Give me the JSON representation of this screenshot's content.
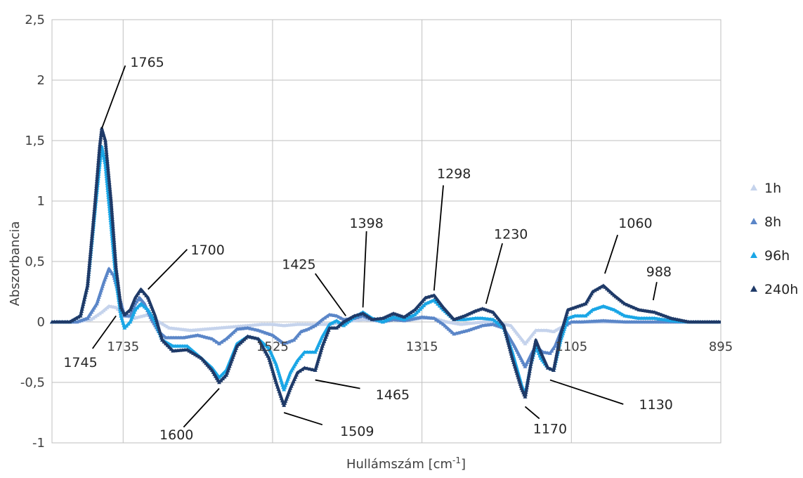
{
  "chart_data": {
    "type": "line",
    "title": "",
    "xlabel": "Hullámszám [cm",
    "xlabel_sup": "-1",
    "xlabel_suffix": "]",
    "ylabel": "Abszorbancia",
    "xlim": [
      1835,
      895
    ],
    "x_reversed": true,
    "ylim": [
      -1,
      2.5
    ],
    "grid": true,
    "legend_position": "right",
    "y_ticks": [
      {
        "value": 2.5,
        "label": "2,5"
      },
      {
        "value": 2,
        "label": "2"
      },
      {
        "value": 1.5,
        "label": "1,5"
      },
      {
        "value": 1,
        "label": "1"
      },
      {
        "value": 0.5,
        "label": "0,5"
      },
      {
        "value": 0,
        "label": "0"
      },
      {
        "value": -0.5,
        "label": "-0,5"
      },
      {
        "value": -1,
        "label": "-1"
      }
    ],
    "x_ticks": [
      {
        "value": 1735,
        "label": "1735"
      },
      {
        "value": 1525,
        "label": "1525"
      },
      {
        "value": 1315,
        "label": "1315"
      },
      {
        "value": 1105,
        "label": "1105"
      },
      {
        "value": 895,
        "label": "895"
      }
    ],
    "series": [
      {
        "name": "1h",
        "color": "#c5d3ec",
        "points": [
          [
            1835,
            0
          ],
          [
            1800,
            0
          ],
          [
            1780,
            0.02
          ],
          [
            1765,
            0.08
          ],
          [
            1755,
            0.13
          ],
          [
            1745,
            0.12
          ],
          [
            1735,
            0.06
          ],
          [
            1720,
            0.03
          ],
          [
            1700,
            0.06
          ],
          [
            1690,
            0.02
          ],
          [
            1670,
            -0.05
          ],
          [
            1640,
            -0.07
          ],
          [
            1600,
            -0.05
          ],
          [
            1580,
            -0.04
          ],
          [
            1560,
            -0.03
          ],
          [
            1540,
            -0.02
          ],
          [
            1525,
            -0.02
          ],
          [
            1509,
            -0.03
          ],
          [
            1490,
            -0.02
          ],
          [
            1465,
            -0.02
          ],
          [
            1445,
            -0.02
          ],
          [
            1425,
            0
          ],
          [
            1398,
            0.02
          ],
          [
            1380,
            0.01
          ],
          [
            1360,
            0.02
          ],
          [
            1340,
            0.01
          ],
          [
            1315,
            0.03
          ],
          [
            1298,
            0.03
          ],
          [
            1280,
            0
          ],
          [
            1260,
            -0.02
          ],
          [
            1230,
            0
          ],
          [
            1215,
            0
          ],
          [
            1190,
            -0.03
          ],
          [
            1170,
            -0.18
          ],
          [
            1155,
            -0.07
          ],
          [
            1140,
            -0.07
          ],
          [
            1130,
            -0.08
          ],
          [
            1115,
            -0.03
          ],
          [
            1105,
            0
          ],
          [
            1080,
            0
          ],
          [
            1060,
            0
          ],
          [
            1040,
            0
          ],
          [
            1020,
            0
          ],
          [
            988,
            0
          ],
          [
            960,
            0
          ],
          [
            930,
            0
          ],
          [
            895,
            0
          ]
        ]
      },
      {
        "name": "8h",
        "color": "#5b86c8",
        "points": [
          [
            1835,
            0
          ],
          [
            1800,
            0
          ],
          [
            1785,
            0.03
          ],
          [
            1772,
            0.15
          ],
          [
            1762,
            0.33
          ],
          [
            1755,
            0.44
          ],
          [
            1748,
            0.38
          ],
          [
            1740,
            0.2
          ],
          [
            1733,
            0.05
          ],
          [
            1725,
            0.05
          ],
          [
            1718,
            0.15
          ],
          [
            1712,
            0.2
          ],
          [
            1705,
            0.15
          ],
          [
            1695,
            0.02
          ],
          [
            1685,
            -0.08
          ],
          [
            1675,
            -0.13
          ],
          [
            1650,
            -0.13
          ],
          [
            1630,
            -0.11
          ],
          [
            1610,
            -0.14
          ],
          [
            1600,
            -0.18
          ],
          [
            1590,
            -0.14
          ],
          [
            1575,
            -0.06
          ],
          [
            1560,
            -0.05
          ],
          [
            1545,
            -0.07
          ],
          [
            1525,
            -0.11
          ],
          [
            1509,
            -0.18
          ],
          [
            1495,
            -0.15
          ],
          [
            1485,
            -0.08
          ],
          [
            1475,
            -0.06
          ],
          [
            1465,
            -0.03
          ],
          [
            1455,
            0.02
          ],
          [
            1445,
            0.06
          ],
          [
            1435,
            0.05
          ],
          [
            1425,
            0.02
          ],
          [
            1410,
            0.03
          ],
          [
            1398,
            0.05
          ],
          [
            1385,
            0.02
          ],
          [
            1370,
            0
          ],
          [
            1355,
            0.02
          ],
          [
            1340,
            0.01
          ],
          [
            1315,
            0.04
          ],
          [
            1298,
            0.03
          ],
          [
            1285,
            -0.02
          ],
          [
            1270,
            -0.1
          ],
          [
            1250,
            -0.07
          ],
          [
            1230,
            -0.03
          ],
          [
            1215,
            -0.02
          ],
          [
            1200,
            -0.05
          ],
          [
            1185,
            -0.2
          ],
          [
            1170,
            -0.37
          ],
          [
            1160,
            -0.25
          ],
          [
            1155,
            -0.2
          ],
          [
            1145,
            -0.25
          ],
          [
            1135,
            -0.26
          ],
          [
            1128,
            -0.2
          ],
          [
            1118,
            -0.05
          ],
          [
            1105,
            0
          ],
          [
            1090,
            0
          ],
          [
            1060,
            0.01
          ],
          [
            1030,
            0
          ],
          [
            988,
            0
          ],
          [
            960,
            0
          ],
          [
            930,
            0
          ],
          [
            895,
            0
          ]
        ]
      },
      {
        "name": "96h",
        "color": "#1aa6e6",
        "points": [
          [
            1835,
            0
          ],
          [
            1810,
            0
          ],
          [
            1795,
            0.05
          ],
          [
            1785,
            0.3
          ],
          [
            1775,
            0.9
          ],
          [
            1768,
            1.3
          ],
          [
            1765,
            1.45
          ],
          [
            1760,
            1.3
          ],
          [
            1752,
            0.8
          ],
          [
            1745,
            0.35
          ],
          [
            1738,
            0.05
          ],
          [
            1733,
            -0.05
          ],
          [
            1725,
            0
          ],
          [
            1718,
            0.1
          ],
          [
            1710,
            0.15
          ],
          [
            1700,
            0.1
          ],
          [
            1690,
            0
          ],
          [
            1680,
            -0.15
          ],
          [
            1665,
            -0.2
          ],
          [
            1645,
            -0.2
          ],
          [
            1625,
            -0.3
          ],
          [
            1610,
            -0.38
          ],
          [
            1600,
            -0.46
          ],
          [
            1590,
            -0.4
          ],
          [
            1575,
            -0.18
          ],
          [
            1560,
            -0.12
          ],
          [
            1545,
            -0.14
          ],
          [
            1530,
            -0.22
          ],
          [
            1520,
            -0.35
          ],
          [
            1509,
            -0.56
          ],
          [
            1500,
            -0.42
          ],
          [
            1490,
            -0.32
          ],
          [
            1480,
            -0.25
          ],
          [
            1465,
            -0.25
          ],
          [
            1455,
            -0.12
          ],
          [
            1445,
            -0.02
          ],
          [
            1435,
            0.01
          ],
          [
            1425,
            -0.03
          ],
          [
            1410,
            0.04
          ],
          [
            1398,
            0.08
          ],
          [
            1385,
            0.03
          ],
          [
            1370,
            0
          ],
          [
            1355,
            0.04
          ],
          [
            1340,
            0.02
          ],
          [
            1325,
            0.06
          ],
          [
            1310,
            0.15
          ],
          [
            1298,
            0.18
          ],
          [
            1285,
            0.1
          ],
          [
            1270,
            0.02
          ],
          [
            1255,
            0.02
          ],
          [
            1240,
            0.03
          ],
          [
            1230,
            0.03
          ],
          [
            1215,
            0.02
          ],
          [
            1200,
            -0.05
          ],
          [
            1188,
            -0.25
          ],
          [
            1175,
            -0.52
          ],
          [
            1170,
            -0.6
          ],
          [
            1162,
            -0.35
          ],
          [
            1155,
            -0.2
          ],
          [
            1148,
            -0.3
          ],
          [
            1138,
            -0.38
          ],
          [
            1130,
            -0.4
          ],
          [
            1120,
            -0.15
          ],
          [
            1110,
            0.03
          ],
          [
            1100,
            0.05
          ],
          [
            1085,
            0.05
          ],
          [
            1075,
            0.1
          ],
          [
            1060,
            0.13
          ],
          [
            1045,
            0.1
          ],
          [
            1030,
            0.05
          ],
          [
            1010,
            0.03
          ],
          [
            988,
            0.03
          ],
          [
            965,
            0.01
          ],
          [
            940,
            0
          ],
          [
            895,
            0
          ]
        ]
      },
      {
        "name": "240h",
        "color": "#1f3a68",
        "points": [
          [
            1835,
            0
          ],
          [
            1810,
            0
          ],
          [
            1795,
            0.05
          ],
          [
            1785,
            0.3
          ],
          [
            1775,
            0.95
          ],
          [
            1768,
            1.45
          ],
          [
            1765,
            1.6
          ],
          [
            1760,
            1.5
          ],
          [
            1752,
            1.0
          ],
          [
            1745,
            0.45
          ],
          [
            1738,
            0.12
          ],
          [
            1733,
            0.06
          ],
          [
            1725,
            0.1
          ],
          [
            1718,
            0.2
          ],
          [
            1710,
            0.27
          ],
          [
            1700,
            0.2
          ],
          [
            1690,
            0.05
          ],
          [
            1680,
            -0.15
          ],
          [
            1665,
            -0.24
          ],
          [
            1645,
            -0.23
          ],
          [
            1625,
            -0.3
          ],
          [
            1610,
            -0.4
          ],
          [
            1600,
            -0.5
          ],
          [
            1590,
            -0.44
          ],
          [
            1575,
            -0.2
          ],
          [
            1560,
            -0.12
          ],
          [
            1545,
            -0.14
          ],
          [
            1530,
            -0.3
          ],
          [
            1520,
            -0.5
          ],
          [
            1509,
            -0.69
          ],
          [
            1500,
            -0.55
          ],
          [
            1490,
            -0.42
          ],
          [
            1480,
            -0.38
          ],
          [
            1465,
            -0.4
          ],
          [
            1455,
            -0.2
          ],
          [
            1445,
            -0.05
          ],
          [
            1435,
            -0.05
          ],
          [
            1425,
            0
          ],
          [
            1410,
            0.05
          ],
          [
            1398,
            0.07
          ],
          [
            1385,
            0.02
          ],
          [
            1370,
            0.03
          ],
          [
            1355,
            0.07
          ],
          [
            1340,
            0.04
          ],
          [
            1325,
            0.1
          ],
          [
            1310,
            0.2
          ],
          [
            1298,
            0.22
          ],
          [
            1285,
            0.12
          ],
          [
            1270,
            0.02
          ],
          [
            1255,
            0.05
          ],
          [
            1240,
            0.09
          ],
          [
            1230,
            0.11
          ],
          [
            1215,
            0.08
          ],
          [
            1200,
            -0.03
          ],
          [
            1188,
            -0.3
          ],
          [
            1175,
            -0.55
          ],
          [
            1170,
            -0.62
          ],
          [
            1162,
            -0.35
          ],
          [
            1155,
            -0.15
          ],
          [
            1148,
            -0.25
          ],
          [
            1138,
            -0.38
          ],
          [
            1130,
            -0.4
          ],
          [
            1120,
            -0.1
          ],
          [
            1110,
            0.1
          ],
          [
            1100,
            0.12
          ],
          [
            1085,
            0.15
          ],
          [
            1075,
            0.25
          ],
          [
            1060,
            0.3
          ],
          [
            1045,
            0.22
          ],
          [
            1030,
            0.15
          ],
          [
            1010,
            0.1
          ],
          [
            988,
            0.08
          ],
          [
            965,
            0.03
          ],
          [
            940,
            0
          ],
          [
            895,
            0
          ]
        ]
      }
    ],
    "annotations": [
      {
        "label": "1765",
        "x": 1765,
        "y": 1.6,
        "tx": 1725,
        "ty": 2.15,
        "lx": 1732,
        "ly": 2.12,
        "anchor": "start"
      },
      {
        "label": "1700",
        "x": 1700,
        "y": 0.27,
        "tx": 1640,
        "ty": 0.6,
        "lx": 1645,
        "ly": 0.6,
        "anchor": "start"
      },
      {
        "label": "1745",
        "x": 1745,
        "y": 0.05,
        "tx": 1795,
        "ty": -0.33,
        "lx": 1778,
        "ly": -0.22,
        "anchor": "middle"
      },
      {
        "label": "1600",
        "x": 1600,
        "y": -0.55,
        "tx": 1660,
        "ty": -0.93,
        "lx": 1650,
        "ly": -0.87,
        "anchor": "middle"
      },
      {
        "label": "1509",
        "x": 1509,
        "y": -0.75,
        "tx": 1430,
        "ty": -0.9,
        "lx": 1455,
        "ly": -0.85,
        "anchor": "start"
      },
      {
        "label": "1465",
        "x": 1465,
        "y": -0.48,
        "tx": 1380,
        "ty": -0.6,
        "lx": 1402,
        "ly": -0.55,
        "anchor": "start"
      },
      {
        "label": "1425",
        "x": 1422,
        "y": 0.05,
        "tx": 1488,
        "ty": 0.48,
        "lx": 1465,
        "ly": 0.4,
        "anchor": "middle"
      },
      {
        "label": "1398",
        "x": 1398,
        "y": 0.12,
        "tx": 1393,
        "ty": 0.82,
        "lx": 1393,
        "ly": 0.75,
        "anchor": "middle"
      },
      {
        "label": "1298",
        "x": 1298,
        "y": 0.26,
        "tx": 1270,
        "ty": 1.23,
        "lx": 1285,
        "ly": 1.13,
        "anchor": "middle"
      },
      {
        "label": "1230",
        "x": 1225,
        "y": 0.15,
        "tx": 1190,
        "ty": 0.73,
        "lx": 1202,
        "ly": 0.65,
        "anchor": "middle"
      },
      {
        "label": "1060",
        "x": 1058,
        "y": 0.4,
        "tx": 1015,
        "ty": 0.82,
        "lx": 1040,
        "ly": 0.72,
        "anchor": "middle"
      },
      {
        "label": "988",
        "x": 990,
        "y": 0.18,
        "tx": 982,
        "ty": 0.42,
        "lx": 985,
        "ly": 0.33,
        "anchor": "middle"
      },
      {
        "label": "1170",
        "x": 1170,
        "y": -0.7,
        "tx": 1135,
        "ty": -0.88,
        "lx": 1150,
        "ly": -0.8,
        "anchor": "middle"
      },
      {
        "label": "1130",
        "x": 1135,
        "y": -0.48,
        "tx": 1010,
        "ty": -0.68,
        "lx": 1032,
        "ly": -0.68,
        "anchor": "start"
      }
    ]
  }
}
